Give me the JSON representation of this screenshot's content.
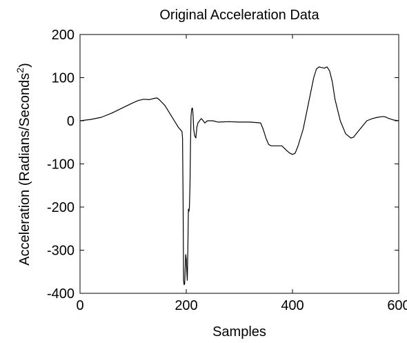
{
  "chart_data": {
    "type": "line",
    "title": "Original Acceleration Data",
    "xlabel": "Samples",
    "ylabel": "Acceleration (Radians/Seconds",
    "ylabel_superscript": "2",
    "ylabel_suffix": ")",
    "xlim": [
      0,
      600
    ],
    "ylim": [
      -400,
      200
    ],
    "xticks": [
      0,
      200,
      400,
      600
    ],
    "yticks": [
      200,
      100,
      0,
      -100,
      -200,
      -300,
      -400
    ],
    "grid": false,
    "line_color": "#000000",
    "series": [
      {
        "x": [
          0,
          20,
          40,
          60,
          80,
          100,
          110,
          120,
          130,
          140,
          145,
          150,
          160,
          170,
          180,
          185,
          190,
          192,
          193,
          194,
          195,
          196,
          197,
          198,
          199,
          200,
          201,
          202,
          203,
          204,
          205,
          206,
          207,
          208,
          209,
          210,
          211,
          212,
          213,
          214,
          216,
          218,
          220,
          222,
          225,
          228,
          230,
          235,
          240,
          250,
          260,
          280,
          300,
          320,
          340,
          345,
          350,
          355,
          360,
          370,
          380,
          390,
          395,
          400,
          405,
          410,
          420,
          430,
          440,
          445,
          450,
          460,
          465,
          470,
          475,
          480,
          490,
          500,
          510,
          515,
          520,
          530,
          540,
          550,
          560,
          570,
          575,
          580,
          590,
          600
        ],
        "y": [
          0,
          3,
          8,
          18,
          30,
          42,
          47,
          50,
          49,
          52,
          53,
          48,
          35,
          15,
          -5,
          -15,
          -22,
          -25,
          -40,
          -180,
          -370,
          -380,
          -378,
          -340,
          -310,
          -320,
          -350,
          -370,
          -300,
          -205,
          -210,
          -200,
          -150,
          -50,
          10,
          25,
          30,
          28,
          10,
          -20,
          -35,
          -40,
          -15,
          -5,
          0,
          5,
          3,
          -5,
          0,
          0,
          -3,
          -2,
          -3,
          -3,
          -5,
          -20,
          -40,
          -55,
          -58,
          -58,
          -58,
          -70,
          -75,
          -78,
          -75,
          -60,
          -20,
          40,
          100,
          120,
          125,
          122,
          125,
          115,
          90,
          50,
          0,
          -30,
          -40,
          -38,
          -30,
          -15,
          0,
          5,
          8,
          10,
          9,
          6,
          2,
          0
        ]
      }
    ]
  }
}
